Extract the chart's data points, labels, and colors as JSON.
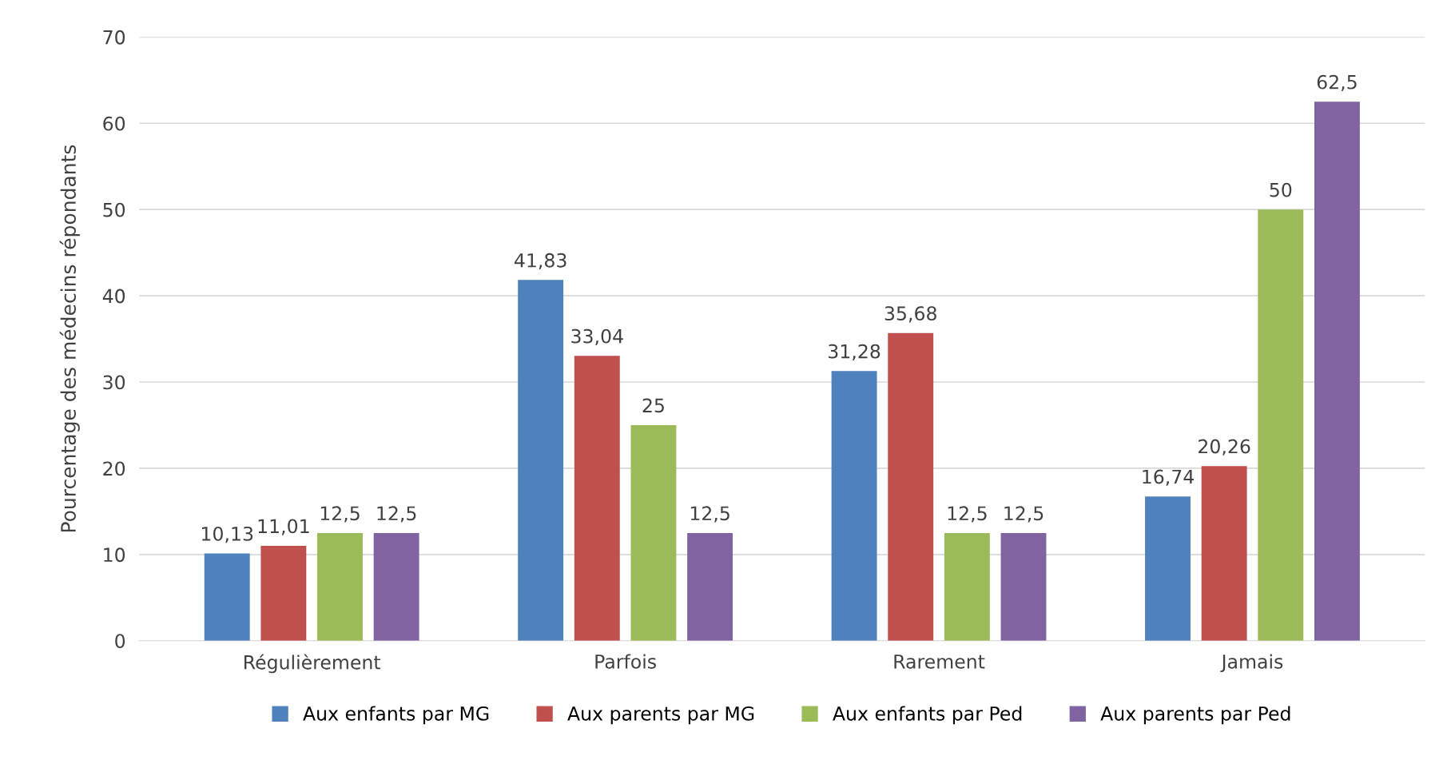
{
  "chart_data": {
    "type": "bar",
    "ylabel": "Pourcentage des médecins répondants",
    "categories": [
      "Régulièrement",
      "Parfois",
      "Rarement",
      "Jamais"
    ],
    "series": [
      {
        "name": "Aux enfants par MG",
        "color": "#4f81bd",
        "values": [
          10.13,
          41.83,
          31.28,
          16.74
        ],
        "value_labels": [
          "10,13",
          "41,83",
          "31,28",
          "16,74"
        ]
      },
      {
        "name": "Aux parents par MG",
        "color": "#c0504d",
        "values": [
          11.01,
          33.04,
          35.68,
          20.26
        ],
        "value_labels": [
          "11,01",
          "33,04",
          "35,68",
          "20,26"
        ]
      },
      {
        "name": "Aux enfants par Ped",
        "color": "#9bbb59",
        "values": [
          12.5,
          25,
          12.5,
          50
        ],
        "value_labels": [
          "12,5",
          "25",
          "12,5",
          "50"
        ]
      },
      {
        "name": "Aux parents par Ped",
        "color": "#8064a2",
        "values": [
          12.5,
          12.5,
          12.5,
          62.5
        ],
        "value_labels": [
          "12,5",
          "12,5",
          "12,5",
          "62,5"
        ]
      }
    ],
    "ylim": [
      0,
      70
    ],
    "yticks": [
      0,
      10,
      20,
      30,
      40,
      50,
      60,
      70
    ],
    "grid": "y",
    "legend": "bottom"
  }
}
